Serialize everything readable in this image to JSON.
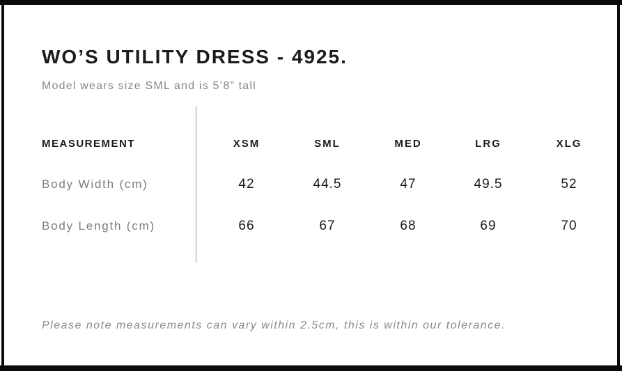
{
  "title": "WO’S UTILITY DRESS - 4925.",
  "subtitle": "Model wears size SML and is 5’8” tall",
  "note": "Please note measurements can vary within 2.5cm, this is within our tolerance.",
  "chart_data": {
    "type": "table",
    "title": "WO’S UTILITY DRESS - 4925.",
    "measurement_header": "MEASUREMENT",
    "size_columns": [
      "XSM",
      "SML",
      "MED",
      "LRG",
      "XLG"
    ],
    "rows": [
      {
        "label": "Body Width (cm)",
        "values": [
          "42",
          "44.5",
          "47",
          "49.5",
          "52"
        ]
      },
      {
        "label": "Body Length (cm)",
        "values": [
          "66",
          "67",
          "68",
          "69",
          "70"
        ]
      }
    ]
  },
  "colors": {
    "frame": "#0a0a0a",
    "text_primary": "#1b1b1b",
    "text_muted": "#868686",
    "divider": "#949494"
  }
}
